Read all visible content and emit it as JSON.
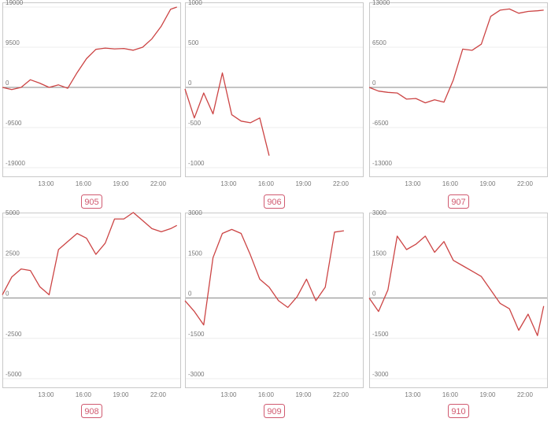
{
  "colors": {
    "line": "#cc4444",
    "badge": "#d05a70",
    "frame": "#c8c8c8",
    "zero_line": "#888888"
  },
  "x_ticks": [
    "13:00",
    "16:00",
    "19:00",
    "22:00"
  ],
  "chart_data": [
    {
      "type": "line",
      "badge": "905",
      "ytick_labels": [
        "19000",
        "9500",
        "0",
        "-9500",
        "-19000"
      ],
      "ylim": [
        -19000,
        19000
      ],
      "x": [
        "09:30",
        "10:15",
        "11:00",
        "11:45",
        "12:30",
        "13:15",
        "14:00",
        "14:45",
        "15:30",
        "16:15",
        "17:00",
        "17:45",
        "18:30",
        "19:15",
        "20:00",
        "20:45",
        "21:30",
        "22:15",
        "23:00",
        "23:30"
      ],
      "values": [
        0,
        -500,
        0,
        1800,
        1000,
        0,
        600,
        -200,
        3500,
        6800,
        9000,
        9300,
        9100,
        9200,
        8800,
        9500,
        11500,
        14500,
        18500,
        19000
      ]
    },
    {
      "type": "line",
      "badge": "906",
      "ytick_labels": [
        "1000",
        "500",
        "0",
        "-500",
        "-1000"
      ],
      "ylim": [
        -1000,
        1000
      ],
      "x": [
        "09:30",
        "10:15",
        "11:00",
        "11:45",
        "12:30",
        "13:15",
        "14:00",
        "14:45",
        "15:30",
        "16:15"
      ],
      "values": [
        -20,
        -380,
        -70,
        -330,
        180,
        -340,
        -420,
        -440,
        -380,
        -850
      ]
    },
    {
      "type": "line",
      "badge": "907",
      "ytick_labels": [
        "13000",
        "6500",
        "0",
        "-6500",
        "-13000"
      ],
      "ylim": [
        -13000,
        13000
      ],
      "x": [
        "09:30",
        "10:15",
        "11:00",
        "11:45",
        "12:30",
        "13:15",
        "14:00",
        "14:45",
        "15:30",
        "16:15",
        "17:00",
        "17:45",
        "18:30",
        "19:15",
        "20:00",
        "20:45",
        "21:30",
        "22:15",
        "23:00",
        "23:30"
      ],
      "values": [
        0,
        -600,
        -800,
        -900,
        -1900,
        -1800,
        -2500,
        -2000,
        -2400,
        1200,
        6200,
        6000,
        7000,
        11500,
        12500,
        12700,
        12000,
        12300,
        12400,
        12500
      ]
    },
    {
      "type": "line",
      "badge": "908",
      "ytick_labels": [
        "5000",
        "2500",
        "0",
        "-2500",
        "-5000"
      ],
      "ylim": [
        -5000,
        5000
      ],
      "x": [
        "09:30",
        "10:15",
        "11:00",
        "11:45",
        "12:30",
        "13:15",
        "14:00",
        "14:45",
        "15:30",
        "16:15",
        "17:00",
        "17:45",
        "18:30",
        "19:15",
        "20:00",
        "20:45",
        "21:30",
        "22:15",
        "23:00",
        "23:30"
      ],
      "values": [
        200,
        1300,
        1800,
        1700,
        700,
        200,
        3000,
        3500,
        4000,
        3700,
        2700,
        3400,
        4900,
        4900,
        5300,
        4800,
        4300,
        4100,
        4300,
        4500
      ]
    },
    {
      "type": "line",
      "badge": "909",
      "ytick_labels": [
        "3000",
        "1500",
        "0",
        "-1500",
        "-3000"
      ],
      "ylim": [
        -3000,
        3000
      ],
      "x": [
        "09:30",
        "10:15",
        "11:00",
        "11:45",
        "12:30",
        "13:15",
        "14:00",
        "14:45",
        "15:30",
        "16:15",
        "17:00",
        "17:45",
        "18:30",
        "19:15",
        "20:00",
        "20:45",
        "21:30",
        "22:15"
      ],
      "values": [
        -100,
        -500,
        -1000,
        1500,
        2400,
        2550,
        2400,
        1600,
        700,
        400,
        -100,
        -350,
        50,
        700,
        -100,
        400,
        2450,
        2500
      ]
    },
    {
      "type": "line",
      "badge": "910",
      "ytick_labels": [
        "3000",
        "1500",
        "0",
        "-1500",
        "-3000"
      ],
      "ylim": [
        -3000,
        3000
      ],
      "x": [
        "09:30",
        "10:15",
        "11:00",
        "11:45",
        "12:30",
        "13:15",
        "14:00",
        "14:45",
        "15:30",
        "16:15",
        "17:00",
        "17:45",
        "18:30",
        "19:15",
        "20:00",
        "20:45",
        "21:30",
        "22:15",
        "23:00",
        "23:30"
      ],
      "values": [
        0,
        -500,
        300,
        2300,
        1800,
        2000,
        2300,
        1700,
        2100,
        1400,
        1200,
        1000,
        800,
        300,
        -200,
        -400,
        -1200,
        -600,
        -1400,
        -300
      ]
    }
  ]
}
